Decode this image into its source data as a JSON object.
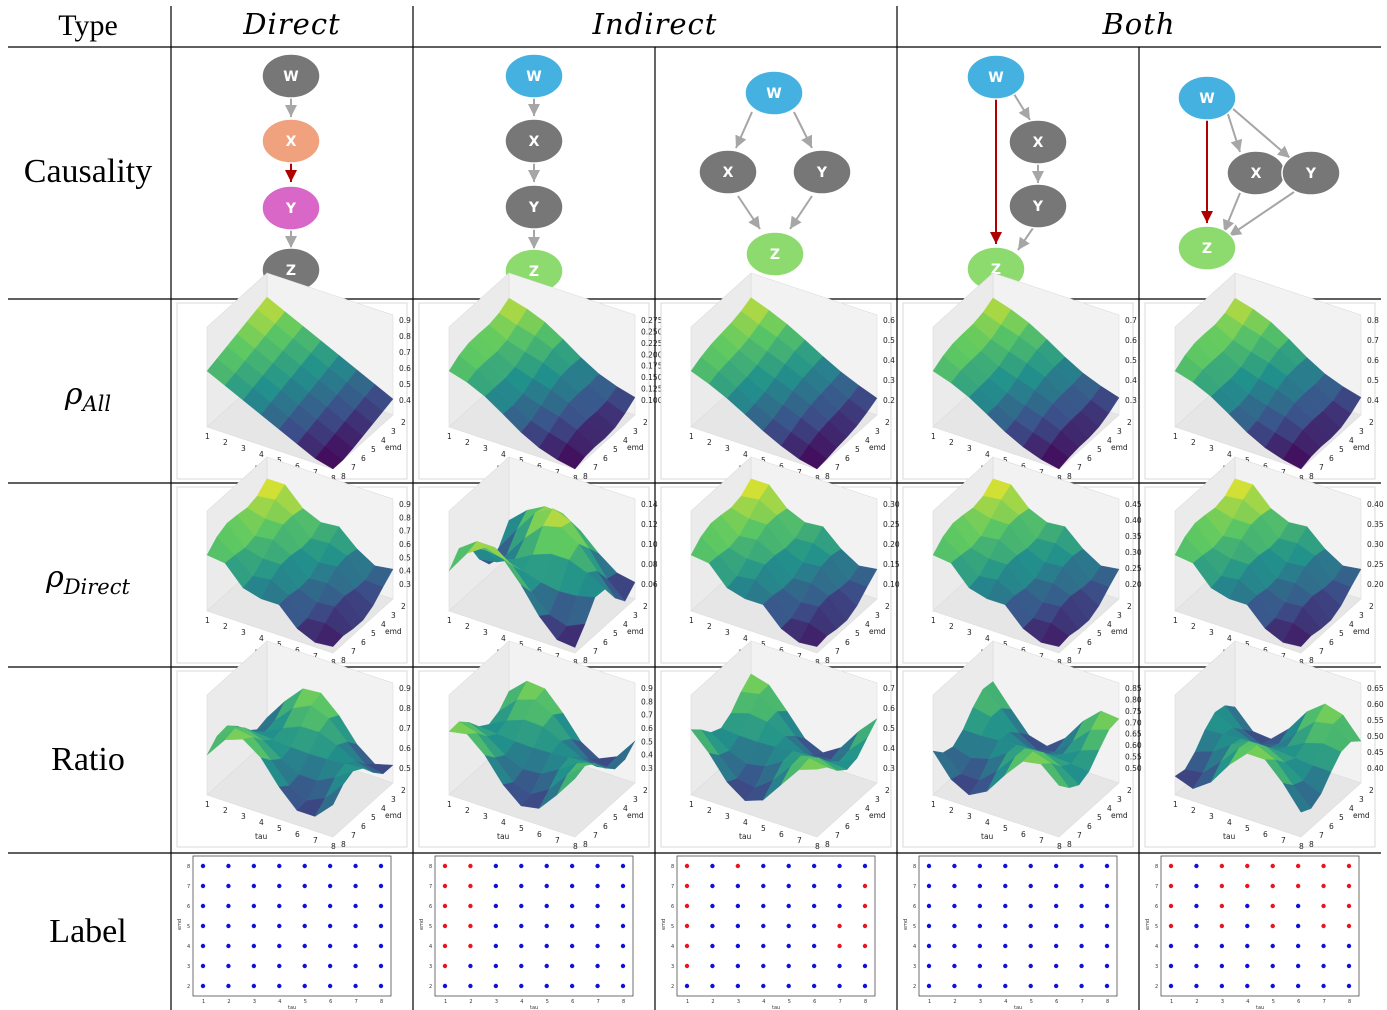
{
  "table": {
    "type_header": "Type",
    "groups": [
      "Direct",
      "Indirect",
      "Both"
    ],
    "rows": {
      "causality": "Causality",
      "rho_all": {
        "symbol": "ρ",
        "sub": "All"
      },
      "rho_direct": {
        "symbol": "ρ",
        "sub": "Direct"
      },
      "ratio": "Ratio",
      "label": "Label"
    }
  },
  "graph_nodes": [
    "W",
    "X",
    "Y",
    "Z"
  ],
  "colors": {
    "node_gray": "#777777",
    "node_blue": "#45b1e0",
    "node_green": "#8ddb6e",
    "node_orange": "#f0a27f",
    "node_pink": "#d867c8",
    "edge_gray": "#a6a6a6",
    "edge_red": "#b00000",
    "label_red": "#e8141e",
    "label_blue": "#1010d8"
  },
  "axes": {
    "tau": "tau",
    "emd": "emd",
    "sc1": "sc1",
    "sc2": "sc2",
    "ratio": "ratio",
    "tau_ticks": [
      "1",
      "2",
      "3",
      "4",
      "5",
      "6",
      "7",
      "8"
    ],
    "emd_ticks": [
      "2",
      "3",
      "4",
      "5",
      "6",
      "7",
      "8"
    ]
  },
  "columns": [
    {
      "id": "direct",
      "sc1_ticks": [
        "0.9",
        "0.8",
        "0.7",
        "0.6",
        "0.5",
        "0.4"
      ],
      "sc2_ticks": [
        "0.9",
        "0.8",
        "0.7",
        "0.6",
        "0.5",
        "0.4",
        "0.3"
      ],
      "ratio_ticks": [
        "0.9",
        "0.8",
        "0.7",
        "0.6",
        "0.5"
      ],
      "label_red": []
    },
    {
      "id": "indirect-chain",
      "sc1_ticks": [
        "0.275",
        "0.250",
        "0.225",
        "0.200",
        "0.175",
        "0.150",
        "0.125",
        "0.100"
      ],
      "sc2_ticks": [
        "0.14",
        "0.12",
        "0.10",
        "0.08",
        "0.06"
      ],
      "ratio_ticks": [
        "0.9",
        "0.8",
        "0.7",
        "0.6",
        "0.5",
        "0.4",
        "0.3"
      ],
      "label_red": [
        [
          1,
          8
        ],
        [
          2,
          8
        ],
        [
          1,
          7
        ],
        [
          2,
          7
        ],
        [
          1,
          6
        ],
        [
          2,
          6
        ],
        [
          1,
          5
        ],
        [
          2,
          5
        ],
        [
          1,
          4
        ],
        [
          2,
          4
        ],
        [
          1,
          3
        ]
      ]
    },
    {
      "id": "indirect-fork",
      "sc1_ticks": [
        "0.6",
        "0.5",
        "0.4",
        "0.3",
        "0.2"
      ],
      "sc2_ticks": [
        "0.30",
        "0.25",
        "0.20",
        "0.15",
        "0.10"
      ],
      "ratio_ticks": [
        "0.7",
        "0.6",
        "0.5",
        "0.4",
        "0.3"
      ],
      "label_red": [
        [
          1,
          8
        ],
        [
          3,
          8
        ],
        [
          1,
          7
        ],
        [
          8,
          7
        ],
        [
          1,
          6
        ],
        [
          8,
          6
        ],
        [
          1,
          5
        ],
        [
          7,
          5
        ],
        [
          8,
          5
        ],
        [
          1,
          4
        ],
        [
          7,
          4
        ],
        [
          8,
          4
        ],
        [
          1,
          3
        ]
      ]
    },
    {
      "id": "both-chain",
      "sc1_ticks": [
        "0.7",
        "0.6",
        "0.5",
        "0.4",
        "0.3"
      ],
      "sc2_ticks": [
        "0.45",
        "0.40",
        "0.35",
        "0.30",
        "0.25",
        "0.20"
      ],
      "ratio_ticks": [
        "0.85",
        "0.80",
        "0.75",
        "0.70",
        "0.65",
        "0.60",
        "0.55",
        "0.50"
      ],
      "label_red": []
    },
    {
      "id": "both-fork",
      "sc1_ticks": [
        "0.8",
        "0.7",
        "0.6",
        "0.5",
        "0.4"
      ],
      "sc2_ticks": [
        "0.40",
        "0.35",
        "0.30",
        "0.25",
        "0.20"
      ],
      "ratio_ticks": [
        "0.65",
        "0.60",
        "0.55",
        "0.50",
        "0.45",
        "0.40"
      ],
      "label_red": [
        [
          1,
          8
        ],
        [
          3,
          8
        ],
        [
          4,
          8
        ],
        [
          5,
          8
        ],
        [
          6,
          8
        ],
        [
          7,
          8
        ],
        [
          8,
          8
        ],
        [
          1,
          7
        ],
        [
          3,
          7
        ],
        [
          4,
          7
        ],
        [
          5,
          7
        ],
        [
          6,
          7
        ],
        [
          7,
          7
        ],
        [
          8,
          7
        ],
        [
          1,
          6
        ],
        [
          3,
          6
        ],
        [
          5,
          6
        ],
        [
          7,
          6
        ],
        [
          8,
          6
        ],
        [
          1,
          5
        ],
        [
          3,
          5
        ],
        [
          5,
          5
        ],
        [
          7,
          5
        ],
        [
          8,
          5
        ]
      ]
    }
  ]
}
